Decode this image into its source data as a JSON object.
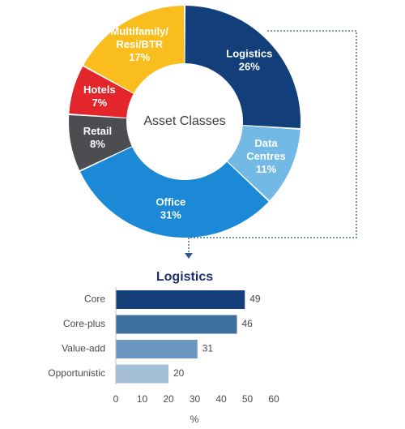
{
  "chart_data": [
    {
      "type": "pie",
      "variant": "donut",
      "center_label": "Asset Classes",
      "slices": [
        {
          "label_lines": [
            "Logistics"
          ],
          "value": 26,
          "value_label": "26%",
          "color": "#123f7a",
          "text_color": "#ffffff"
        },
        {
          "label_lines": [
            "Data",
            "Centres"
          ],
          "value": 11,
          "value_label": "11%",
          "color": "#72b9e6",
          "text_color": "#ffffff"
        },
        {
          "label_lines": [
            "Office"
          ],
          "value": 31,
          "value_label": "31%",
          "color": "#1b89d6",
          "text_color": "#ffffff"
        },
        {
          "label_lines": [
            "Retail"
          ],
          "value": 8,
          "value_label": "8%",
          "color": "#4b4d50",
          "text_color": "#ffffff"
        },
        {
          "label_lines": [
            "Hotels"
          ],
          "value": 7,
          "value_label": "7%",
          "color": "#e3262b",
          "text_color": "#ffffff"
        },
        {
          "label_lines": [
            "Multifamily/",
            "Resi/BTR"
          ],
          "value": 17,
          "value_label": "17%",
          "color": "#f9bd1e",
          "text_color": "#ffffff"
        }
      ]
    },
    {
      "type": "bar",
      "orientation": "horizontal",
      "title": "Logistics",
      "categories": [
        "Core",
        "Core-plus",
        "Value-add",
        "Opportunistic"
      ],
      "values": [
        49,
        46,
        31,
        20
      ],
      "colors": [
        "#123f7a",
        "#3f6f9f",
        "#6c97c1",
        "#a4bfd7"
      ],
      "xlabel": "%",
      "xlim": [
        0,
        60
      ],
      "xticks": [
        0,
        10,
        20,
        30,
        40,
        50,
        60
      ],
      "grid": false,
      "legend": "none"
    }
  ],
  "connector_color": "#2d5a8a"
}
